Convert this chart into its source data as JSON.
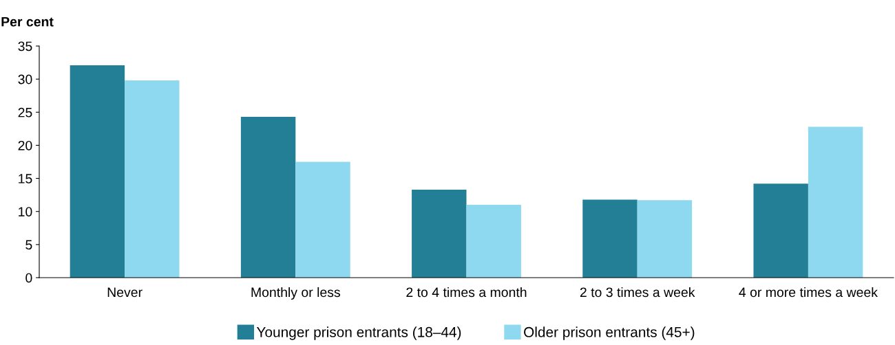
{
  "chart_data": {
    "type": "bar",
    "ylabel": "Per cent",
    "categories": [
      "Never",
      "Monthly or less",
      "2 to 4 times a month",
      "2 to 3 times a week",
      "4 or more times a week"
    ],
    "series": [
      {
        "name": "Younger prison entrants (18–44)",
        "color": "#237f96",
        "values": [
          32.1,
          24.3,
          13.3,
          11.8,
          14.2
        ]
      },
      {
        "name": "Older prison entrants (45+)",
        "color": "#8ed8f0",
        "values": [
          29.8,
          17.5,
          11.0,
          11.7,
          22.8
        ]
      }
    ],
    "ylim": [
      0,
      35
    ],
    "yticks": [
      0,
      5,
      10,
      15,
      20,
      25,
      30,
      35
    ],
    "grid": false,
    "legend": "bottom"
  }
}
